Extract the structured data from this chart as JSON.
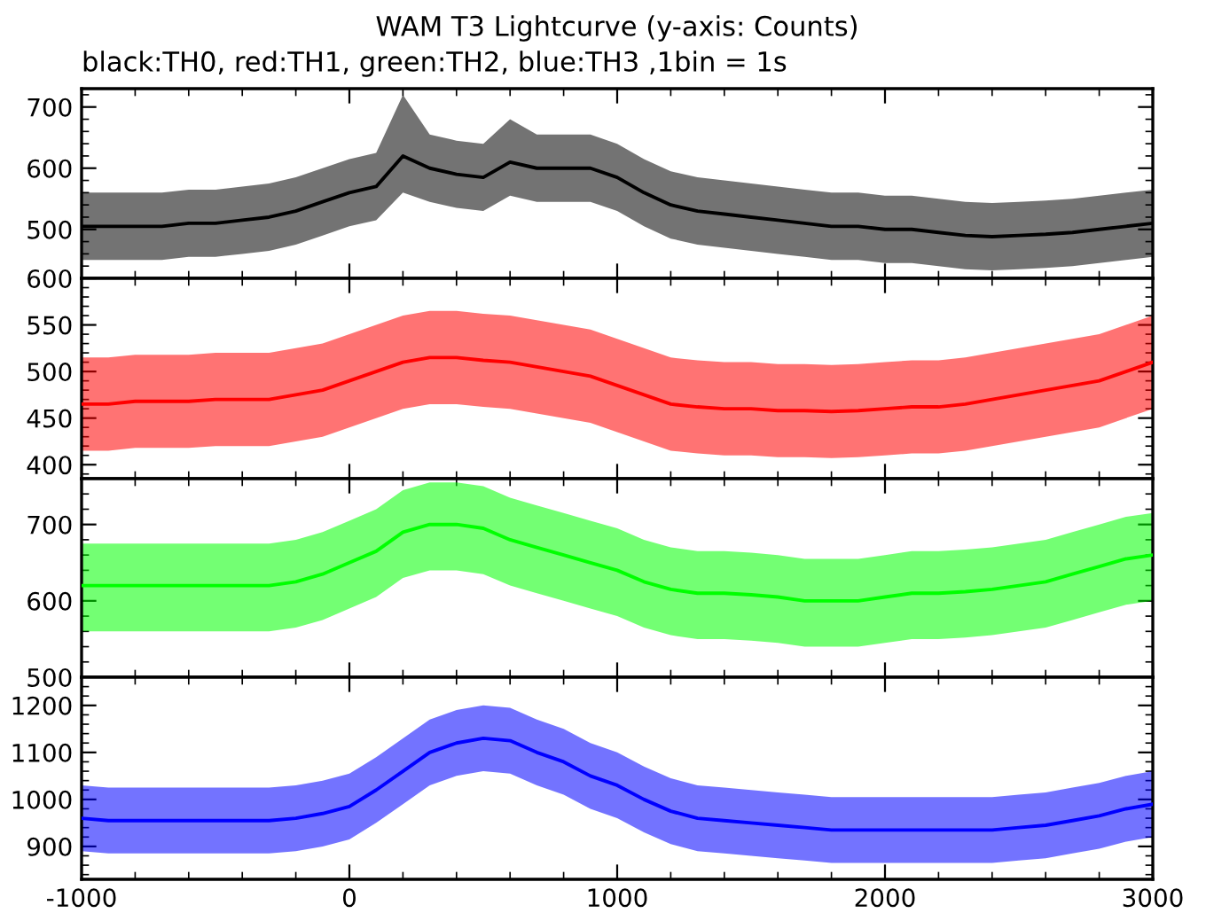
{
  "chart_data": [
    {
      "type": "line",
      "title": "WAM T3 Lightcurve (y-axis: Counts)",
      "subtitle": "black:TH0, red:TH1, green:TH2, blue:TH3 ,1bin = 1s",
      "xlim": [
        -1000,
        3000
      ],
      "xticks": [
        -1000,
        0,
        1000,
        2000,
        3000
      ],
      "ylim": [
        420,
        730
      ],
      "yticks": [
        500,
        600,
        700
      ],
      "tick_labels": "y",
      "grid": false,
      "legend": false,
      "x": [
        -1000,
        -900,
        -800,
        -700,
        -600,
        -500,
        -400,
        -300,
        -200,
        -100,
        0,
        100,
        200,
        300,
        400,
        500,
        600,
        700,
        800,
        900,
        1000,
        1100,
        1200,
        1300,
        1400,
        1500,
        1600,
        1700,
        1800,
        1900,
        2000,
        2100,
        2200,
        2300,
        2400,
        2500,
        2600,
        2700,
        2800,
        2900,
        3000
      ],
      "series": [
        {
          "color": "#000000",
          "values": [
            505,
            505,
            505,
            505,
            510,
            510,
            515,
            520,
            530,
            545,
            560,
            570,
            620,
            600,
            590,
            585,
            610,
            600,
            600,
            600,
            585,
            560,
            540,
            530,
            525,
            520,
            515,
            510,
            505,
            505,
            500,
            500,
            495,
            490,
            488,
            490,
            492,
            495,
            500,
            505,
            510
          ],
          "lower": [
            450,
            450,
            450,
            450,
            455,
            455,
            460,
            465,
            475,
            490,
            505,
            515,
            560,
            545,
            535,
            530,
            555,
            545,
            545,
            545,
            530,
            505,
            485,
            475,
            470,
            465,
            460,
            455,
            450,
            450,
            445,
            445,
            440,
            435,
            433,
            435,
            437,
            440,
            445,
            450,
            455
          ],
          "upper": [
            560,
            560,
            560,
            560,
            565,
            565,
            570,
            575,
            585,
            600,
            615,
            625,
            720,
            655,
            645,
            640,
            680,
            655,
            655,
            655,
            640,
            615,
            595,
            585,
            580,
            575,
            570,
            565,
            560,
            560,
            555,
            555,
            550,
            545,
            543,
            545,
            547,
            550,
            555,
            560,
            565
          ]
        }
      ]
    },
    {
      "type": "line",
      "xlim": [
        -1000,
        3000
      ],
      "xticks": [
        -1000,
        0,
        1000,
        2000,
        3000
      ],
      "ylim": [
        385,
        600
      ],
      "yticks": [
        400,
        450,
        500,
        550,
        600
      ],
      "tick_labels": "y",
      "grid": false,
      "legend": false,
      "x": [
        -1000,
        -900,
        -800,
        -700,
        -600,
        -500,
        -400,
        -300,
        -200,
        -100,
        0,
        100,
        200,
        300,
        400,
        500,
        600,
        700,
        800,
        900,
        1000,
        1100,
        1200,
        1300,
        1400,
        1500,
        1600,
        1700,
        1800,
        1900,
        2000,
        2100,
        2200,
        2300,
        2400,
        2500,
        2600,
        2700,
        2800,
        2900,
        3000
      ],
      "series": [
        {
          "color": "#ff0000",
          "values": [
            465,
            465,
            468,
            468,
            468,
            470,
            470,
            470,
            475,
            480,
            490,
            500,
            510,
            515,
            515,
            512,
            510,
            505,
            500,
            495,
            485,
            475,
            465,
            462,
            460,
            460,
            458,
            458,
            457,
            458,
            460,
            462,
            462,
            465,
            470,
            475,
            480,
            485,
            490,
            500,
            510
          ],
          "lower": [
            415,
            415,
            418,
            418,
            418,
            420,
            420,
            420,
            425,
            430,
            440,
            450,
            460,
            465,
            465,
            462,
            460,
            455,
            450,
            445,
            435,
            425,
            415,
            412,
            410,
            410,
            408,
            408,
            407,
            408,
            410,
            412,
            412,
            415,
            420,
            425,
            430,
            435,
            440,
            450,
            460
          ],
          "upper": [
            515,
            515,
            518,
            518,
            518,
            520,
            520,
            520,
            525,
            530,
            540,
            550,
            560,
            565,
            565,
            562,
            560,
            555,
            550,
            545,
            535,
            525,
            515,
            512,
            510,
            510,
            508,
            508,
            507,
            508,
            510,
            512,
            512,
            515,
            520,
            525,
            530,
            535,
            540,
            550,
            560
          ]
        }
      ]
    },
    {
      "type": "line",
      "xlim": [
        -1000,
        3000
      ],
      "xticks": [
        -1000,
        0,
        1000,
        2000,
        3000
      ],
      "ylim": [
        500,
        760
      ],
      "yticks": [
        500,
        600,
        700
      ],
      "tick_labels": "y",
      "grid": false,
      "legend": false,
      "x": [
        -1000,
        -900,
        -800,
        -700,
        -600,
        -500,
        -400,
        -300,
        -200,
        -100,
        0,
        100,
        200,
        300,
        400,
        500,
        600,
        700,
        800,
        900,
        1000,
        1100,
        1200,
        1300,
        1400,
        1500,
        1600,
        1700,
        1800,
        1900,
        2000,
        2100,
        2200,
        2300,
        2400,
        2500,
        2600,
        2700,
        2800,
        2900,
        3000
      ],
      "series": [
        {
          "color": "#00ff00",
          "values": [
            620,
            620,
            620,
            620,
            620,
            620,
            620,
            620,
            625,
            635,
            650,
            665,
            690,
            700,
            700,
            695,
            680,
            670,
            660,
            650,
            640,
            625,
            615,
            610,
            610,
            608,
            605,
            600,
            600,
            600,
            605,
            610,
            610,
            612,
            615,
            620,
            625,
            635,
            645,
            655,
            660
          ],
          "lower": [
            560,
            560,
            560,
            560,
            560,
            560,
            560,
            560,
            565,
            575,
            590,
            605,
            630,
            640,
            640,
            635,
            620,
            610,
            600,
            590,
            580,
            565,
            555,
            550,
            550,
            548,
            545,
            540,
            540,
            540,
            545,
            550,
            550,
            552,
            555,
            560,
            565,
            575,
            585,
            595,
            600
          ],
          "upper": [
            675,
            675,
            675,
            675,
            675,
            675,
            675,
            675,
            680,
            690,
            705,
            720,
            745,
            755,
            755,
            750,
            735,
            725,
            715,
            705,
            695,
            680,
            670,
            665,
            665,
            663,
            660,
            655,
            655,
            655,
            660,
            665,
            665,
            667,
            670,
            675,
            680,
            690,
            700,
            710,
            715
          ]
        }
      ]
    },
    {
      "type": "line",
      "xlim": [
        -1000,
        3000
      ],
      "xticks": [
        -1000,
        0,
        1000,
        2000,
        3000
      ],
      "ylim": [
        830,
        1260
      ],
      "yticks": [
        900,
        1000,
        1100,
        1200
      ],
      "grid": false,
      "legend": false,
      "x": [
        -1000,
        -900,
        -800,
        -700,
        -600,
        -500,
        -400,
        -300,
        -200,
        -100,
        0,
        100,
        200,
        300,
        400,
        500,
        600,
        700,
        800,
        900,
        1000,
        1100,
        1200,
        1300,
        1400,
        1500,
        1600,
        1700,
        1800,
        1900,
        2000,
        2100,
        2200,
        2300,
        2400,
        2500,
        2600,
        2700,
        2800,
        2900,
        3000
      ],
      "series": [
        {
          "color": "#0000ff",
          "values": [
            960,
            955,
            955,
            955,
            955,
            955,
            955,
            955,
            960,
            970,
            985,
            1020,
            1060,
            1100,
            1120,
            1130,
            1125,
            1100,
            1080,
            1050,
            1030,
            1000,
            975,
            960,
            955,
            950,
            945,
            940,
            935,
            935,
            935,
            935,
            935,
            935,
            935,
            940,
            945,
            955,
            965,
            980,
            990
          ],
          "lower": [
            890,
            885,
            885,
            885,
            885,
            885,
            885,
            885,
            890,
            900,
            915,
            950,
            990,
            1030,
            1050,
            1060,
            1055,
            1030,
            1010,
            980,
            960,
            930,
            905,
            890,
            885,
            880,
            875,
            870,
            865,
            865,
            865,
            865,
            865,
            865,
            865,
            870,
            875,
            885,
            895,
            910,
            920
          ],
          "upper": [
            1030,
            1025,
            1025,
            1025,
            1025,
            1025,
            1025,
            1025,
            1030,
            1040,
            1055,
            1090,
            1130,
            1170,
            1190,
            1200,
            1195,
            1170,
            1150,
            1120,
            1100,
            1070,
            1045,
            1030,
            1025,
            1020,
            1015,
            1010,
            1005,
            1005,
            1005,
            1005,
            1005,
            1005,
            1005,
            1010,
            1015,
            1025,
            1035,
            1050,
            1060
          ]
        }
      ]
    }
  ]
}
